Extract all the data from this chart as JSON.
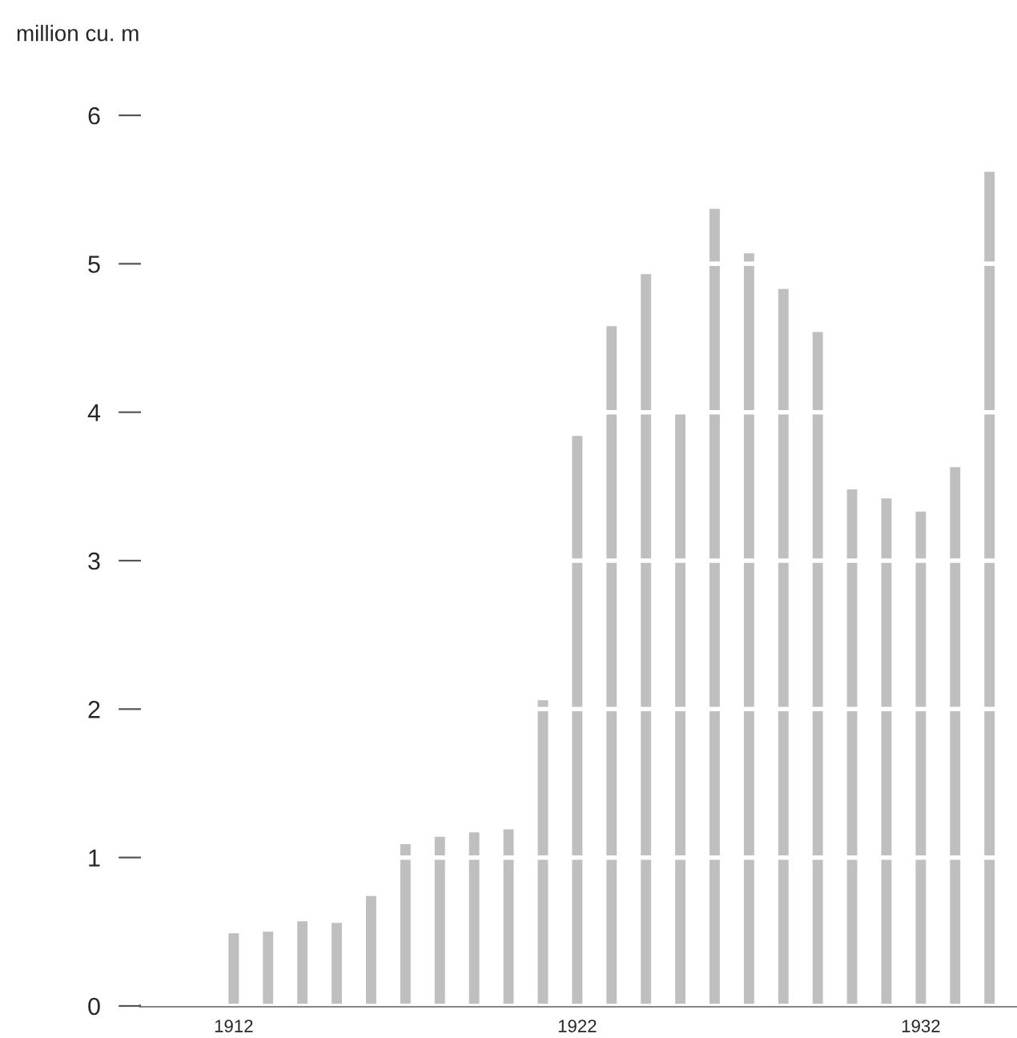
{
  "chart_data": {
    "type": "bar",
    "ylabel": "million cu. m",
    "x": [
      1912,
      1913,
      1914,
      1915,
      1916,
      1917,
      1918,
      1919,
      1920,
      1921,
      1922,
      1923,
      1924,
      1925,
      1926,
      1927,
      1928,
      1929,
      1930,
      1931,
      1932,
      1933,
      1934
    ],
    "values": [
      0.49,
      0.5,
      0.57,
      0.56,
      0.74,
      1.09,
      1.14,
      1.17,
      1.19,
      2.06,
      3.84,
      4.58,
      4.93,
      3.99,
      5.37,
      5.07,
      4.83,
      4.54,
      3.48,
      3.42,
      3.33,
      3.63,
      5.62
    ],
    "color": "#bfbfbf",
    "xlim": [
      1909.3,
      1934.8
    ],
    "xticks": [
      1912,
      1922,
      1932
    ],
    "ylim": [
      0,
      6
    ],
    "yticks": [
      0,
      1,
      2,
      3,
      4,
      5,
      6
    ],
    "grid": "y",
    "legend": false
  }
}
